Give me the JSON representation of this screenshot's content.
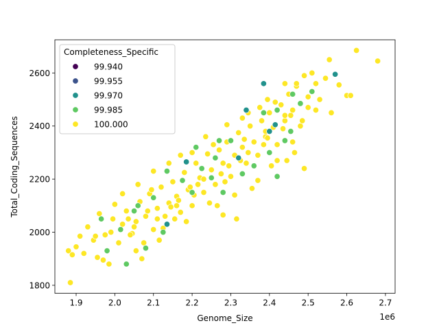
{
  "chart_data": {
    "type": "scatter",
    "title": "",
    "xlabel": "Genome_Size",
    "ylabel": "Total_Coding_Sequences",
    "x_offset_label": "1e6",
    "x_scale_factor": 1000000,
    "xlim": [
      1845000,
      2725000
    ],
    "ylim": [
      1770000,
      2725
    ],
    "ylim_data": [
      1770,
      2725
    ],
    "x_ticks": [
      1.9,
      2.0,
      2.1,
      2.2,
      2.3,
      2.4,
      2.5,
      2.6,
      2.7
    ],
    "x_tick_labels": [
      "1.9",
      "2.0",
      "2.1",
      "2.2",
      "2.3",
      "2.4",
      "2.5",
      "2.6",
      "2.7"
    ],
    "y_ticks": [
      1800,
      2000,
      2200,
      2400,
      2600
    ],
    "y_tick_labels": [
      "1800",
      "2000",
      "2200",
      "2400",
      "2600"
    ],
    "grid": false,
    "legend": {
      "title": "Completeness_Specific",
      "placement": "top-left",
      "entries": [
        {
          "label": "99.940",
          "color": "#440154"
        },
        {
          "label": "99.955",
          "color": "#3b528b"
        },
        {
          "label": "99.970",
          "color": "#21918c"
        },
        {
          "label": "99.985",
          "color": "#5ec962"
        },
        {
          "label": "100.000",
          "color": "#fde725"
        }
      ]
    },
    "series": [
      {
        "name": "99.970",
        "color": "#21918c",
        "points": [
          [
            2.34,
            2460
          ],
          [
            2.385,
            2560
          ],
          [
            2.415,
            2405
          ],
          [
            2.32,
            2280
          ],
          [
            2.135,
            2030
          ],
          [
            2.57,
            2595
          ],
          [
            2.4,
            2380
          ],
          [
            2.185,
            2265
          ]
        ]
      },
      {
        "name": "99.985",
        "color": "#5ec962",
        "points": [
          [
            2.05,
            2080
          ],
          [
            2.2,
            2150
          ],
          [
            2.26,
            2280
          ],
          [
            2.42,
            2210
          ],
          [
            2.385,
            2450
          ],
          [
            2.48,
            2485
          ],
          [
            2.1,
            2130
          ],
          [
            2.25,
            2205
          ],
          [
            1.98,
            1930
          ],
          [
            2.03,
            1880
          ],
          [
            2.21,
            2320
          ],
          [
            2.125,
            2000
          ],
          [
            2.44,
            2345
          ],
          [
            2.33,
            2220
          ],
          [
            2.46,
            2520
          ],
          [
            2.28,
            2150
          ],
          [
            2.06,
            2100
          ],
          [
            1.965,
            2050
          ],
          [
            2.225,
            2240
          ],
          [
            2.42,
            2460
          ],
          [
            2.51,
            2530
          ],
          [
            2.3,
            2345
          ],
          [
            2.175,
            2195
          ],
          [
            2.08,
            1940
          ],
          [
            2.36,
            2250
          ],
          [
            2.27,
            2345
          ],
          [
            2.135,
            2230
          ],
          [
            2.4,
            2300
          ],
          [
            2.015,
            2010
          ],
          [
            2.455,
            2380
          ]
        ]
      },
      {
        "name": "100.000",
        "color": "#fde725",
        "points": [
          [
            1.88,
            1930
          ],
          [
            1.89,
            1915
          ],
          [
            1.885,
            1810
          ],
          [
            1.9,
            1945
          ],
          [
            1.91,
            1985
          ],
          [
            1.92,
            1920
          ],
          [
            1.93,
            2020
          ],
          [
            1.945,
            1970
          ],
          [
            1.955,
            1905
          ],
          [
            1.96,
            2070
          ],
          [
            1.975,
            1990
          ],
          [
            1.985,
            1880
          ],
          [
            1.995,
            2050
          ],
          [
            2.0,
            2105
          ],
          [
            2.01,
            1960
          ],
          [
            2.02,
            2030
          ],
          [
            2.03,
            2080
          ],
          [
            2.045,
            1995
          ],
          [
            2.055,
            2040
          ],
          [
            2.065,
            2115
          ],
          [
            2.07,
            1900
          ],
          [
            2.08,
            2060
          ],
          [
            2.09,
            2145
          ],
          [
            2.1,
            2010
          ],
          [
            2.11,
            2090
          ],
          [
            2.12,
            2170
          ],
          [
            2.13,
            2060
          ],
          [
            2.14,
            2110
          ],
          [
            2.15,
            2190
          ],
          [
            2.16,
            2135
          ],
          [
            2.17,
            2075
          ],
          [
            2.18,
            2225
          ],
          [
            2.19,
            2160
          ],
          [
            2.2,
            2100
          ],
          [
            2.21,
            2260
          ],
          [
            2.22,
            2205
          ],
          [
            2.23,
            2150
          ],
          [
            2.24,
            2295
          ],
          [
            2.25,
            2235
          ],
          [
            2.26,
            2180
          ],
          [
            2.27,
            2310
          ],
          [
            2.28,
            2260
          ],
          [
            2.29,
            2340
          ],
          [
            2.3,
            2210
          ],
          [
            2.31,
            2290
          ],
          [
            2.32,
            2375
          ],
          [
            2.33,
            2320
          ],
          [
            2.34,
            2260
          ],
          [
            2.35,
            2400
          ],
          [
            2.36,
            2340
          ],
          [
            2.37,
            2290
          ],
          [
            2.38,
            2420
          ],
          [
            2.39,
            2360
          ],
          [
            2.4,
            2450
          ],
          [
            2.41,
            2395
          ],
          [
            2.42,
            2330
          ],
          [
            2.43,
            2480
          ],
          [
            2.44,
            2420
          ],
          [
            2.45,
            2520
          ],
          [
            2.46,
            2460
          ],
          [
            2.47,
            2550
          ],
          [
            2.48,
            2400
          ],
          [
            2.49,
            2590
          ],
          [
            2.5,
            2470
          ],
          [
            2.51,
            2600
          ],
          [
            2.52,
            2560
          ],
          [
            2.53,
            2500
          ],
          [
            2.545,
            2580
          ],
          [
            2.555,
            2650
          ],
          [
            2.56,
            2450
          ],
          [
            2.58,
            2555
          ],
          [
            2.6,
            2515
          ],
          [
            2.61,
            2515
          ],
          [
            2.625,
            2685
          ],
          [
            2.68,
            2645
          ],
          [
            2.115,
            1970
          ],
          [
            2.155,
            2050
          ],
          [
            2.205,
            2140
          ],
          [
            2.265,
            2100
          ],
          [
            2.315,
            2050
          ],
          [
            2.355,
            2165
          ],
          [
            2.405,
            2250
          ],
          [
            2.445,
            2270
          ],
          [
            2.465,
            2300
          ],
          [
            2.49,
            2240
          ],
          [
            2.02,
            2145
          ],
          [
            2.055,
            1930
          ],
          [
            1.97,
            1895
          ],
          [
            2.1,
            2230
          ],
          [
            2.17,
            2290
          ],
          [
            2.235,
            2360
          ],
          [
            2.29,
            2405
          ],
          [
            2.345,
            2450
          ],
          [
            2.395,
            2500
          ],
          [
            2.44,
            2560
          ],
          [
            2.075,
            1960
          ],
          [
            2.125,
            2015
          ],
          [
            2.185,
            2040
          ],
          [
            2.245,
            2110
          ],
          [
            2.28,
            2065
          ],
          [
            2.31,
            2140
          ],
          [
            2.37,
            2195
          ],
          [
            2.42,
            2270
          ],
          [
            2.46,
            2340
          ],
          [
            2.06,
            2180
          ],
          [
            2.14,
            2260
          ],
          [
            2.095,
            2160
          ],
          [
            2.2,
            2300
          ],
          [
            2.255,
            2330
          ],
          [
            2.33,
            2430
          ],
          [
            2.375,
            2470
          ],
          [
            2.415,
            2490
          ],
          [
            2.47,
            2560
          ],
          [
            1.95,
            1985
          ],
          [
            1.99,
            2000
          ],
          [
            2.035,
            2050
          ],
          [
            2.085,
            2080
          ],
          [
            2.165,
            2120
          ],
          [
            2.215,
            2180
          ],
          [
            2.275,
            2220
          ],
          [
            2.325,
            2270
          ],
          [
            2.385,
            2330
          ],
          [
            2.435,
            2390
          ],
          [
            2.485,
            2420
          ],
          [
            2.52,
            2460
          ],
          [
            2.04,
            1990
          ],
          [
            2.145,
            2095
          ],
          [
            2.195,
            2170
          ],
          [
            2.295,
            2250
          ],
          [
            2.345,
            2300
          ],
          [
            2.395,
            2355
          ],
          [
            2.455,
            2440
          ],
          [
            2.5,
            2510
          ],
          [
            2.05,
            2020
          ],
          [
            2.11,
            2050
          ],
          [
            2.16,
            2100
          ],
          [
            2.23,
            2200
          ],
          [
            2.285,
            2190
          ],
          [
            2.335,
            2350
          ],
          [
            2.39,
            2380
          ],
          [
            2.44,
            2440
          ]
        ]
      }
    ]
  }
}
